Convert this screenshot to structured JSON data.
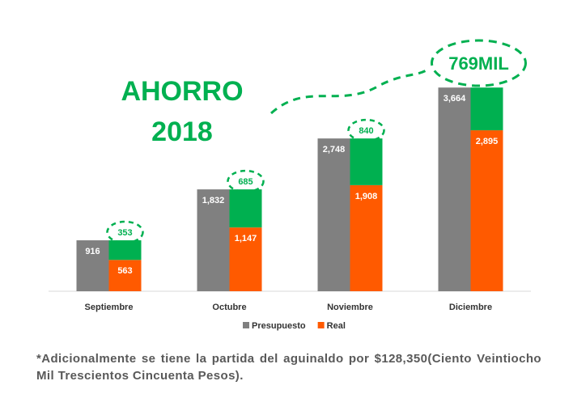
{
  "chart_data": {
    "type": "bar",
    "title": [
      "AHORRO",
      "2018"
    ],
    "categories": [
      "Septiembre",
      "Octubre",
      "Noviembre",
      "Diciembre"
    ],
    "series": [
      {
        "name": "Presupuesto",
        "color": "#808080",
        "values": [
          916,
          1832,
          2748,
          3664
        ],
        "value_labels": [
          "916",
          "1,832",
          "2,748",
          "3,664"
        ]
      },
      {
        "name": "Real",
        "color": "#ff5a00",
        "values": [
          563,
          1147,
          1908,
          2895
        ],
        "value_labels": [
          "563",
          "1,147",
          "1,908",
          "2,895"
        ]
      }
    ],
    "savings": {
      "color": "#00b050",
      "values": [
        353,
        685,
        840,
        769
      ],
      "value_labels": [
        "353",
        "685",
        "840",
        "769MIL"
      ]
    },
    "ylim": [
      0,
      3900
    ],
    "legend": "bottom"
  },
  "note": "*Adicionalmente se tiene la partida del aguinaldo por $128,350(Ciento Veintiocho Mil Trescientos Cincuenta Pesos)."
}
